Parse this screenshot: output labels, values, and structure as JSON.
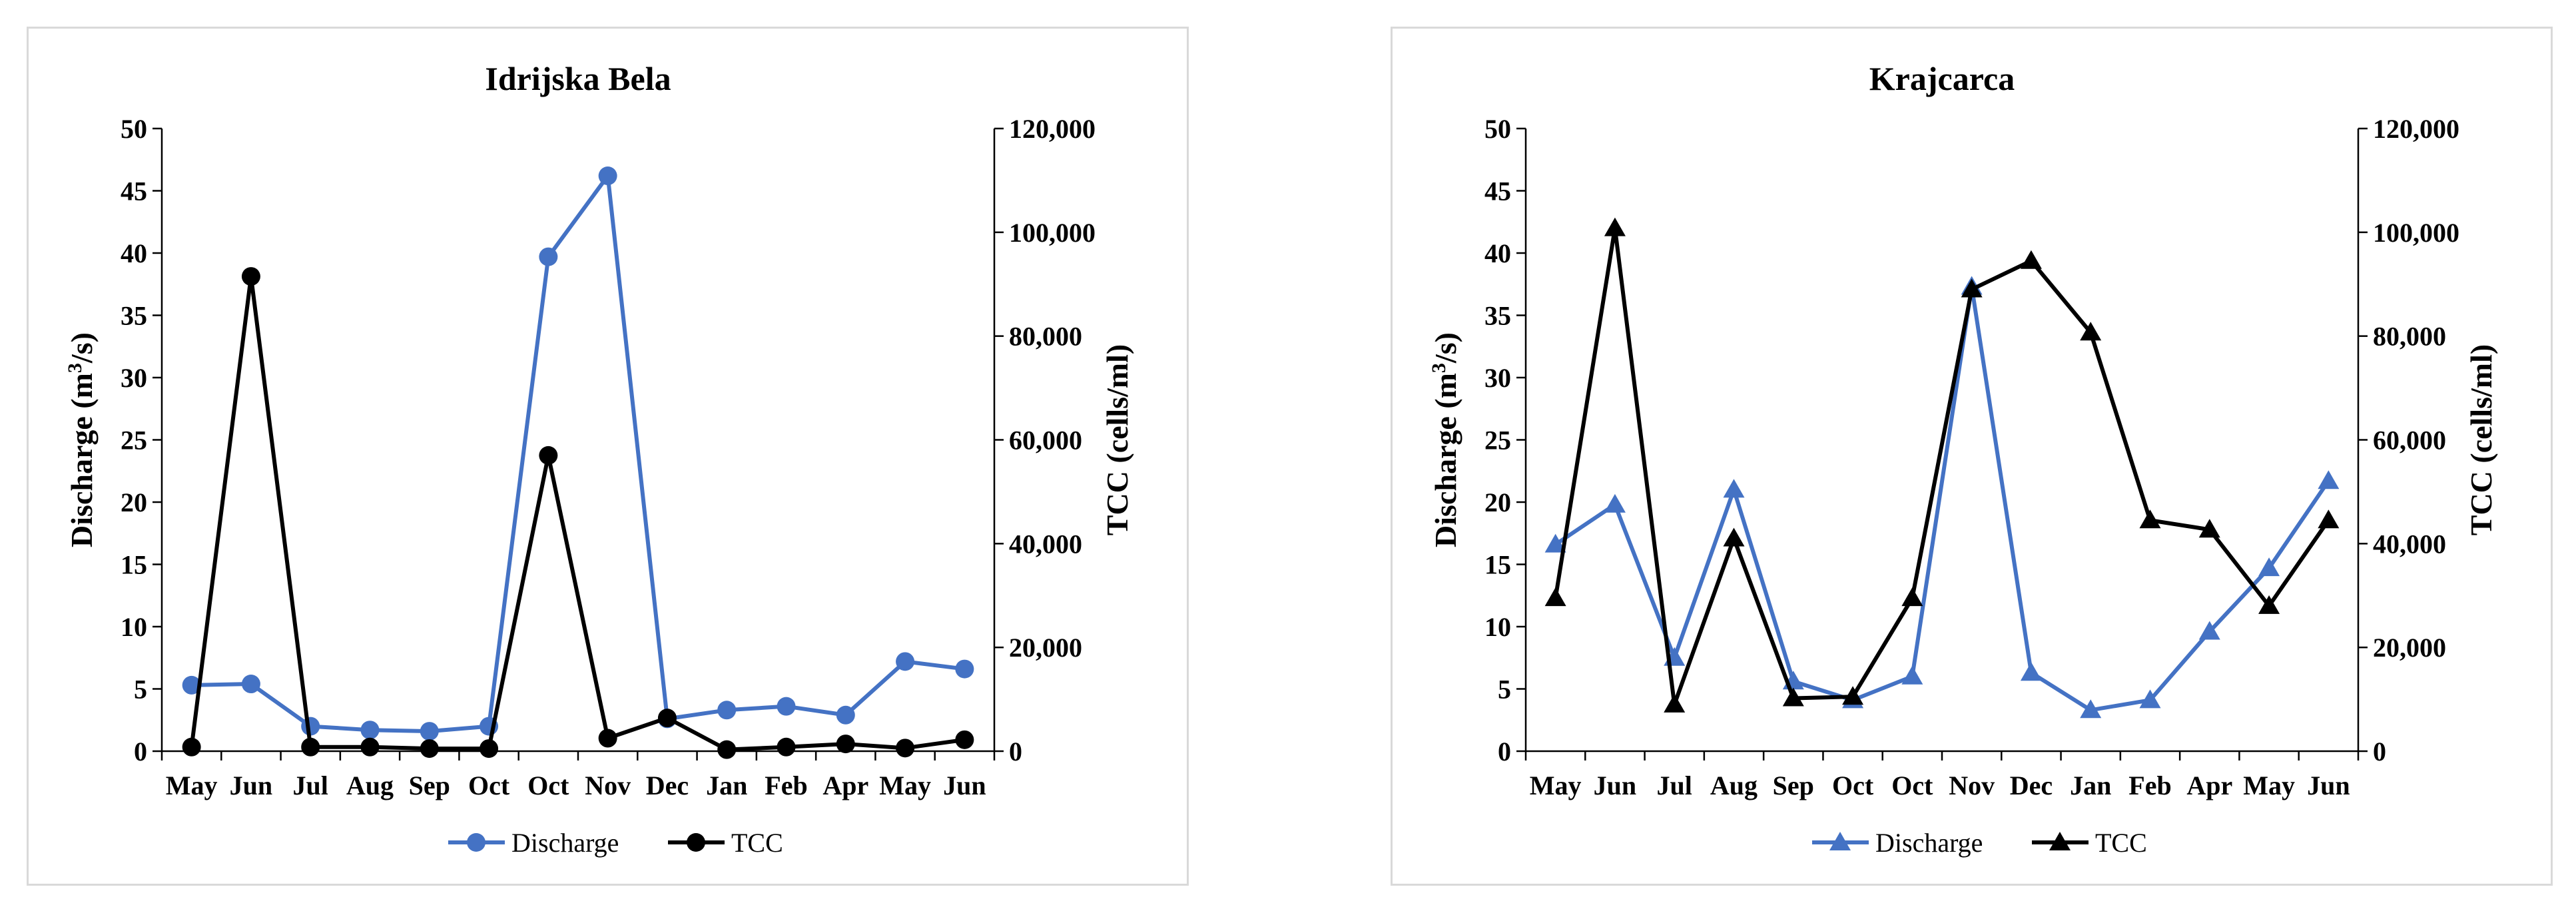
{
  "chart_data": [
    {
      "type": "line",
      "title": "Idrijska  Bela",
      "categories": [
        "May",
        "Jun",
        "Jul",
        "Aug",
        "Sep",
        "Oct",
        "Oct",
        "Nov",
        "Dec",
        "Jan",
        "Feb",
        "Apr",
        "May",
        "Jun"
      ],
      "ylabel_prefix": "Discharge (m",
      "ylabel_sup": "3",
      "ylabel_suffix": "/s)",
      "ylabel_right": "TCC  (cells/ml)",
      "ylim": [
        0,
        50
      ],
      "y2lim": [
        0,
        120000
      ],
      "yticks": [
        "0",
        "5",
        "10",
        "15",
        "20",
        "25",
        "30",
        "35",
        "40",
        "45",
        "50"
      ],
      "y2ticks": [
        "0",
        "20,000",
        "40,000",
        "60,000",
        "80,000",
        "100,000",
        "120,000"
      ],
      "legend_position": "bottom",
      "series": [
        {
          "name": "Discharge",
          "axis": "left",
          "marker": "circle",
          "color": "#4472C4",
          "values": [
            5.3,
            5.4,
            2.0,
            1.7,
            1.6,
            2.0,
            39.7,
            46.2,
            2.6,
            3.3,
            3.6,
            2.9,
            7.2,
            6.6
          ]
        },
        {
          "name": "TCC",
          "axis": "right",
          "marker": "circle",
          "color": "#000000",
          "values": [
            800,
            91500,
            800,
            800,
            500,
            500,
            57000,
            2500,
            6400,
            300,
            800,
            1400,
            600,
            2200
          ]
        }
      ]
    },
    {
      "type": "line",
      "title": "Krajcarca",
      "categories": [
        "May",
        "Jun",
        "Jul",
        "Aug",
        "Sep",
        "Oct",
        "Oct",
        "Nov",
        "Dec",
        "Jan",
        "Feb",
        "Apr",
        "May",
        "Jun"
      ],
      "ylabel_prefix": "Discharge (m",
      "ylabel_sup": "3",
      "ylabel_suffix": "/s)",
      "ylabel_right": "TCC  (cells/ml)",
      "ylim": [
        0,
        50
      ],
      "y2lim": [
        0,
        120000
      ],
      "yticks": [
        "0",
        "5",
        "10",
        "15",
        "20",
        "25",
        "30",
        "35",
        "40",
        "45",
        "50"
      ],
      "y2ticks": [
        "0",
        "20,000",
        "40,000",
        "60,000",
        "80,000",
        "100,000",
        "120,000"
      ],
      "legend_position": "bottom",
      "series": [
        {
          "name": "Discharge",
          "axis": "left",
          "marker": "triangle",
          "color": "#4472C4",
          "values": [
            16.6,
            19.8,
            7.5,
            21.0,
            5.6,
            4.1,
            6.0,
            37.3,
            6.3,
            3.3,
            4.1,
            9.6,
            14.7,
            21.7
          ]
        },
        {
          "name": "TCC",
          "axis": "right",
          "marker": "triangle",
          "color": "#000000",
          "values": [
            29500,
            100800,
            9000,
            41000,
            10200,
            10500,
            29500,
            89000,
            94500,
            80700,
            44500,
            42700,
            28000,
            44500
          ]
        }
      ]
    }
  ]
}
